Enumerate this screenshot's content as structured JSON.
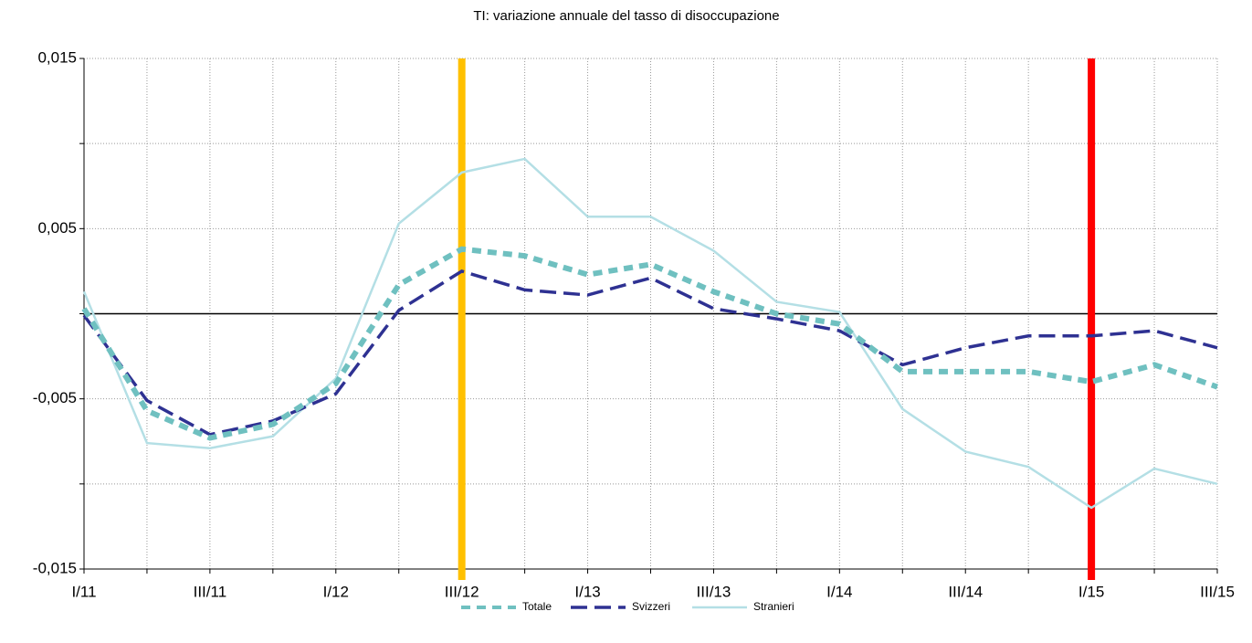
{
  "chart_data": {
    "type": "line",
    "title": "TI: variazione annuale del tasso di disoccupazione",
    "categories": [
      "I/11",
      null,
      "III/11",
      null,
      "I/12",
      null,
      "III/12",
      null,
      "I/13",
      null,
      "III/13",
      null,
      "I/14",
      null,
      "III/14",
      null,
      "I/15",
      null,
      "III/15"
    ],
    "series": [
      {
        "name": "Totale",
        "color": "#6fc0c0",
        "values": [
          0.0003,
          -0.0057,
          -0.0073,
          -0.0065,
          -0.0041,
          0.0017,
          0.0038,
          0.0034,
          0.0023,
          0.0029,
          0.0013,
          0.0,
          -0.0006,
          -0.0034,
          -0.0034,
          -0.0034,
          -0.004,
          -0.003,
          -0.0043
        ]
      },
      {
        "name": "Svizzeri",
        "color": "#2e3192",
        "values": [
          -0.0001,
          -0.0051,
          -0.0071,
          -0.0063,
          -0.0047,
          0.0002,
          0.0025,
          0.0014,
          0.0011,
          0.0021,
          0.0003,
          -0.0003,
          -0.001,
          -0.003,
          -0.002,
          -0.0013,
          -0.0013,
          -0.001,
          -0.002
        ]
      },
      {
        "name": "Stranieri",
        "color": "#b4dfe5",
        "values": [
          0.0013,
          -0.0076,
          -0.0079,
          -0.0072,
          -0.0038,
          0.0053,
          0.0083,
          0.0091,
          0.0057,
          0.0057,
          0.0037,
          0.0007,
          0.0001,
          -0.0056,
          -0.0081,
          -0.009,
          -0.0114,
          -0.0091,
          -0.01
        ]
      }
    ],
    "ylim": [
      -0.015,
      0.015
    ],
    "yticks": [
      {
        "value": -0.015,
        "label": "-0,015"
      },
      {
        "value": -0.01,
        "label": null
      },
      {
        "value": -0.005,
        "label": "-0,005"
      },
      {
        "value": 0,
        "label": null
      },
      {
        "value": 0.005,
        "label": "0,005"
      },
      {
        "value": 0.01,
        "label": null
      },
      {
        "value": 0.015,
        "label": "0,015"
      }
    ],
    "grid": true,
    "legend": "bottom",
    "vlines": [
      {
        "category": "III/12",
        "color": "#ffc000"
      },
      {
        "category": "I/15",
        "color": "#ff0000"
      }
    ]
  }
}
